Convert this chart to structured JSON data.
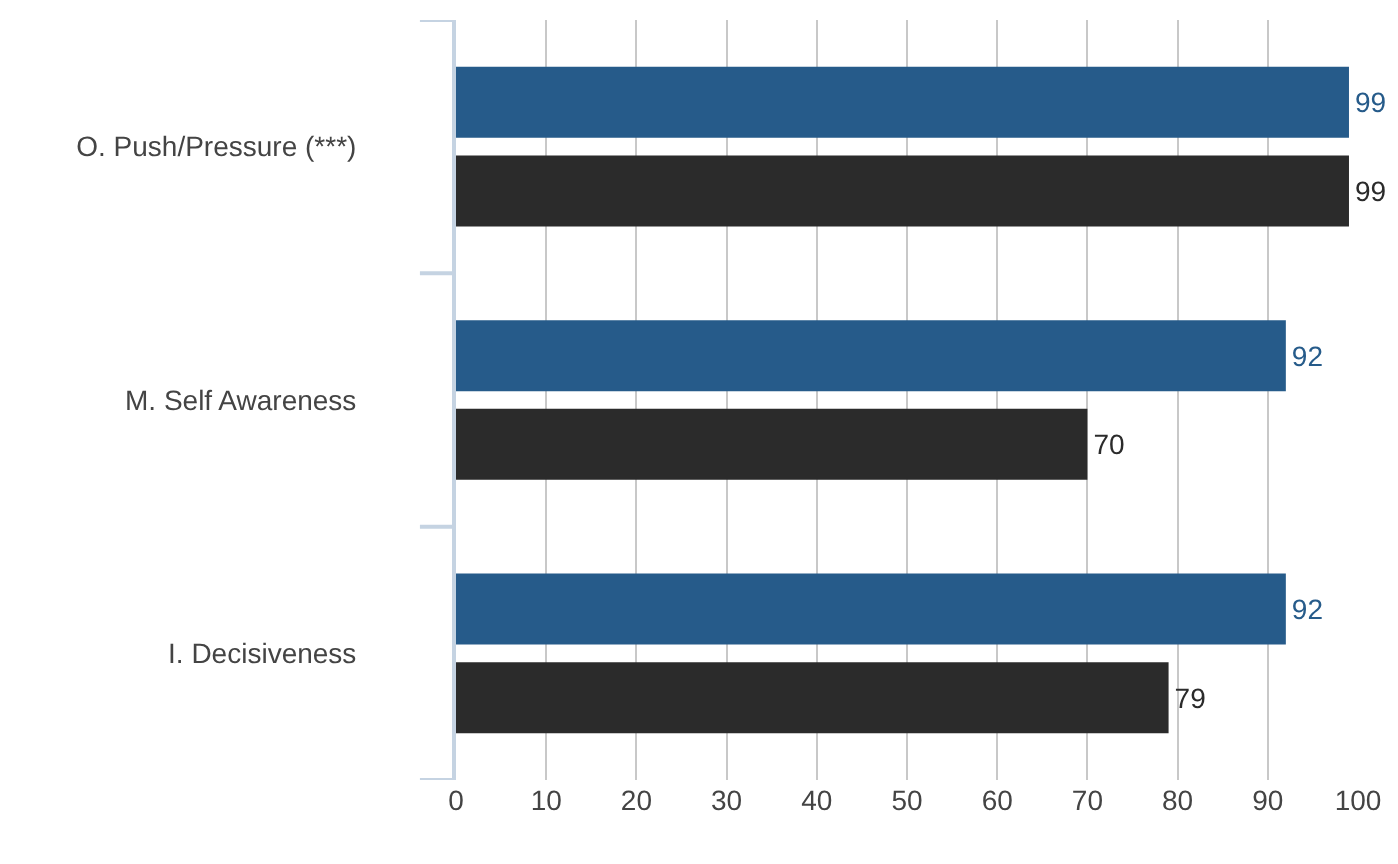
{
  "chart_data": {
    "type": "bar",
    "orientation": "horizontal",
    "categories": [
      "O. Push/Pressure (***)",
      "M. Self Awareness",
      "I. Decisiveness"
    ],
    "series": [
      {
        "color": "#265b8a",
        "values": [
          99,
          92,
          92
        ]
      },
      {
        "color": "#2b2b2b",
        "values": [
          99,
          70,
          79
        ]
      }
    ],
    "xlim": [
      0,
      100
    ],
    "xticks": [
      0,
      10,
      20,
      30,
      40,
      50,
      60,
      70,
      80,
      90,
      100
    ],
    "grid": "x",
    "data_labels": true
  }
}
